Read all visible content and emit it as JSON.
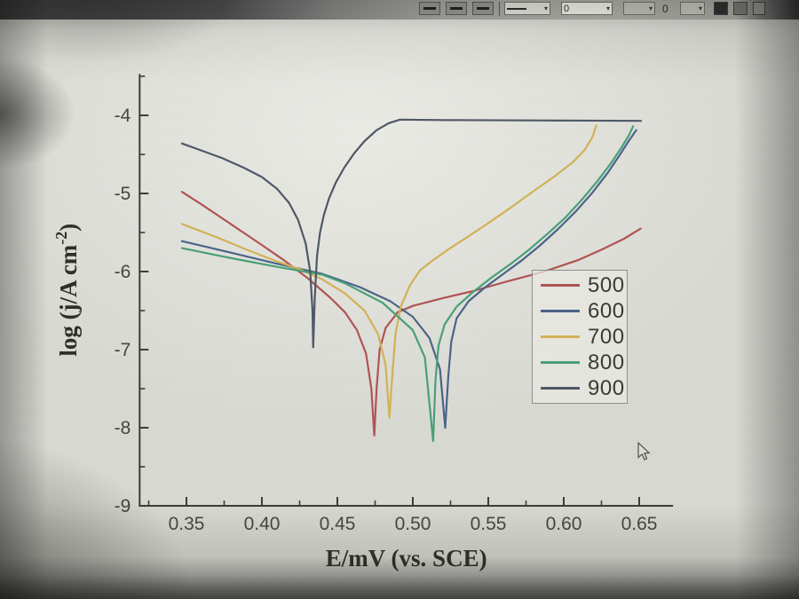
{
  "toolbar": {
    "spinner_value_1": "0",
    "spinner_value_2": "0"
  },
  "chart_data": {
    "type": "line",
    "title": "",
    "xlabel": "E/mV (vs. SCE)",
    "ylabel": "log (j/A cm⁻²)",
    "ylabel_parts": {
      "main": "log (j/A cm",
      "sup": "-2",
      "close": ")"
    },
    "xlim": [
      0.319,
      0.6724
    ],
    "ylim": [
      -9,
      -3.47
    ],
    "grid": false,
    "legend_position": "center-right",
    "x_ticks": [
      {
        "value": 0.35,
        "label": "0.35"
      },
      {
        "value": 0.4,
        "label": "0.40"
      },
      {
        "value": 0.45,
        "label": "0.45"
      },
      {
        "value": 0.5,
        "label": "0.50"
      },
      {
        "value": 0.55,
        "label": "0.55"
      },
      {
        "value": 0.6,
        "label": "0.60"
      },
      {
        "value": 0.65,
        "label": "0.65"
      }
    ],
    "x_minor_ticks": [
      0.325,
      0.375,
      0.425,
      0.475,
      0.525,
      0.575,
      0.625,
      0.675
    ],
    "y_ticks": [
      {
        "value": -4,
        "label": "-4"
      },
      {
        "value": -5,
        "label": "-5"
      },
      {
        "value": -6,
        "label": "-6"
      },
      {
        "value": -7,
        "label": "-7"
      },
      {
        "value": -8,
        "label": "-8"
      },
      {
        "value": -9,
        "label": "-9"
      }
    ],
    "y_minor_ticks": [
      -3.5,
      -4.5,
      -5.5,
      -6.5,
      -7.5,
      -8.5
    ],
    "series": [
      {
        "name": "500",
        "color": "#b05454",
        "points": [
          [
            0.347,
            -4.98
          ],
          [
            0.36,
            -5.14
          ],
          [
            0.38,
            -5.4
          ],
          [
            0.4,
            -5.66
          ],
          [
            0.415,
            -5.86
          ],
          [
            0.43,
            -6.08
          ],
          [
            0.445,
            -6.33
          ],
          [
            0.455,
            -6.52
          ],
          [
            0.463,
            -6.75
          ],
          [
            0.469,
            -7.05
          ],
          [
            0.4725,
            -7.5
          ],
          [
            0.4745,
            -8.1
          ],
          [
            0.476,
            -7.5
          ],
          [
            0.478,
            -7.0
          ],
          [
            0.482,
            -6.72
          ],
          [
            0.49,
            -6.52
          ],
          [
            0.5,
            -6.44
          ],
          [
            0.52,
            -6.34
          ],
          [
            0.54,
            -6.25
          ],
          [
            0.56,
            -6.14
          ],
          [
            0.587,
            -6.0
          ],
          [
            0.61,
            -5.85
          ],
          [
            0.625,
            -5.72
          ],
          [
            0.64,
            -5.58
          ],
          [
            0.651,
            -5.45
          ]
        ]
      },
      {
        "name": "600",
        "color": "#4a6488",
        "points": [
          [
            0.347,
            -5.61
          ],
          [
            0.38,
            -5.76
          ],
          [
            0.41,
            -5.9
          ],
          [
            0.44,
            -6.03
          ],
          [
            0.465,
            -6.2
          ],
          [
            0.485,
            -6.38
          ],
          [
            0.5,
            -6.58
          ],
          [
            0.511,
            -6.85
          ],
          [
            0.518,
            -7.25
          ],
          [
            0.5215,
            -8.0
          ],
          [
            0.5235,
            -7.35
          ],
          [
            0.5255,
            -6.9
          ],
          [
            0.529,
            -6.6
          ],
          [
            0.537,
            -6.38
          ],
          [
            0.548,
            -6.2
          ],
          [
            0.56,
            -6.03
          ],
          [
            0.572,
            -5.86
          ],
          [
            0.584,
            -5.67
          ],
          [
            0.596,
            -5.46
          ],
          [
            0.608,
            -5.23
          ],
          [
            0.619,
            -4.99
          ],
          [
            0.629,
            -4.74
          ],
          [
            0.637,
            -4.51
          ],
          [
            0.643,
            -4.33
          ],
          [
            0.648,
            -4.19
          ]
        ]
      },
      {
        "name": "700",
        "color": "#d2b355",
        "points": [
          [
            0.347,
            -5.39
          ],
          [
            0.37,
            -5.56
          ],
          [
            0.39,
            -5.72
          ],
          [
            0.41,
            -5.87
          ],
          [
            0.425,
            -5.97
          ],
          [
            0.44,
            -6.1
          ],
          [
            0.455,
            -6.28
          ],
          [
            0.468,
            -6.5
          ],
          [
            0.477,
            -6.8
          ],
          [
            0.482,
            -7.2
          ],
          [
            0.4845,
            -7.87
          ],
          [
            0.4865,
            -7.3
          ],
          [
            0.4885,
            -6.8
          ],
          [
            0.492,
            -6.45
          ],
          [
            0.498,
            -6.18
          ],
          [
            0.505,
            -5.98
          ],
          [
            0.513,
            -5.86
          ],
          [
            0.524,
            -5.71
          ],
          [
            0.536,
            -5.56
          ],
          [
            0.55,
            -5.38
          ],
          [
            0.565,
            -5.18
          ],
          [
            0.58,
            -4.97
          ],
          [
            0.594,
            -4.78
          ],
          [
            0.606,
            -4.6
          ],
          [
            0.614,
            -4.44
          ],
          [
            0.619,
            -4.28
          ],
          [
            0.6215,
            -4.13
          ]
        ]
      },
      {
        "name": "800",
        "color": "#48a078",
        "points": [
          [
            0.347,
            -5.7
          ],
          [
            0.38,
            -5.83
          ],
          [
            0.41,
            -5.94
          ],
          [
            0.44,
            -6.04
          ],
          [
            0.455,
            -6.15
          ],
          [
            0.48,
            -6.4
          ],
          [
            0.5,
            -6.75
          ],
          [
            0.508,
            -7.1
          ],
          [
            0.5135,
            -8.17
          ],
          [
            0.515,
            -7.4
          ],
          [
            0.517,
            -6.95
          ],
          [
            0.521,
            -6.68
          ],
          [
            0.529,
            -6.45
          ],
          [
            0.54,
            -6.26
          ],
          [
            0.552,
            -6.08
          ],
          [
            0.565,
            -5.9
          ],
          [
            0.577,
            -5.72
          ],
          [
            0.589,
            -5.52
          ],
          [
            0.601,
            -5.31
          ],
          [
            0.612,
            -5.08
          ],
          [
            0.622,
            -4.85
          ],
          [
            0.631,
            -4.62
          ],
          [
            0.638,
            -4.42
          ],
          [
            0.643,
            -4.26
          ],
          [
            0.646,
            -4.14
          ]
        ]
      },
      {
        "name": "900",
        "color": "#4e5866",
        "points": [
          [
            0.347,
            -4.36
          ],
          [
            0.36,
            -4.45
          ],
          [
            0.374,
            -4.55
          ],
          [
            0.388,
            -4.67
          ],
          [
            0.4,
            -4.79
          ],
          [
            0.41,
            -4.94
          ],
          [
            0.418,
            -5.12
          ],
          [
            0.424,
            -5.34
          ],
          [
            0.429,
            -5.64
          ],
          [
            0.432,
            -6.0
          ],
          [
            0.4335,
            -6.5
          ],
          [
            0.434,
            -6.97
          ],
          [
            0.435,
            -6.35
          ],
          [
            0.4365,
            -5.8
          ],
          [
            0.4385,
            -5.5
          ],
          [
            0.441,
            -5.28
          ],
          [
            0.4445,
            -5.06
          ],
          [
            0.449,
            -4.86
          ],
          [
            0.4545,
            -4.67
          ],
          [
            0.461,
            -4.49
          ],
          [
            0.468,
            -4.33
          ],
          [
            0.476,
            -4.19
          ],
          [
            0.484,
            -4.1
          ],
          [
            0.4915,
            -4.055
          ],
          [
            0.52,
            -4.06
          ],
          [
            0.58,
            -4.065
          ],
          [
            0.6512,
            -4.07
          ]
        ]
      }
    ]
  }
}
